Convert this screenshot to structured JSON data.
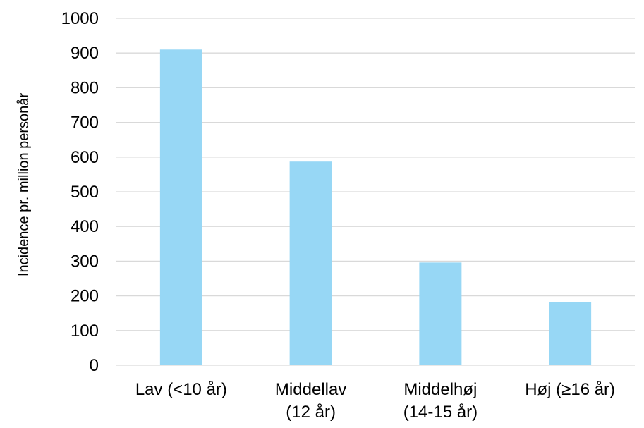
{
  "chart_data": {
    "type": "bar",
    "title": "",
    "xlabel": "",
    "ylabel": "Incidence pr. million personår",
    "ylim": [
      0,
      1000
    ],
    "yticks": [
      0,
      100,
      200,
      300,
      400,
      500,
      600,
      700,
      800,
      900,
      1000
    ],
    "grid": true,
    "legend": "none",
    "categories": [
      [
        "Lav (<10 år)"
      ],
      [
        "Middellav",
        "(12 år)"
      ],
      [
        "Middelhøj",
        "(14-15 år)"
      ],
      [
        "Høj (≥16 år)"
      ]
    ],
    "values": [
      910,
      587,
      296,
      181
    ],
    "colors": {
      "bar": "#97D7F5",
      "grid": "#D9D9D9",
      "axis": "#D9D9D9",
      "text": "#000000"
    }
  }
}
